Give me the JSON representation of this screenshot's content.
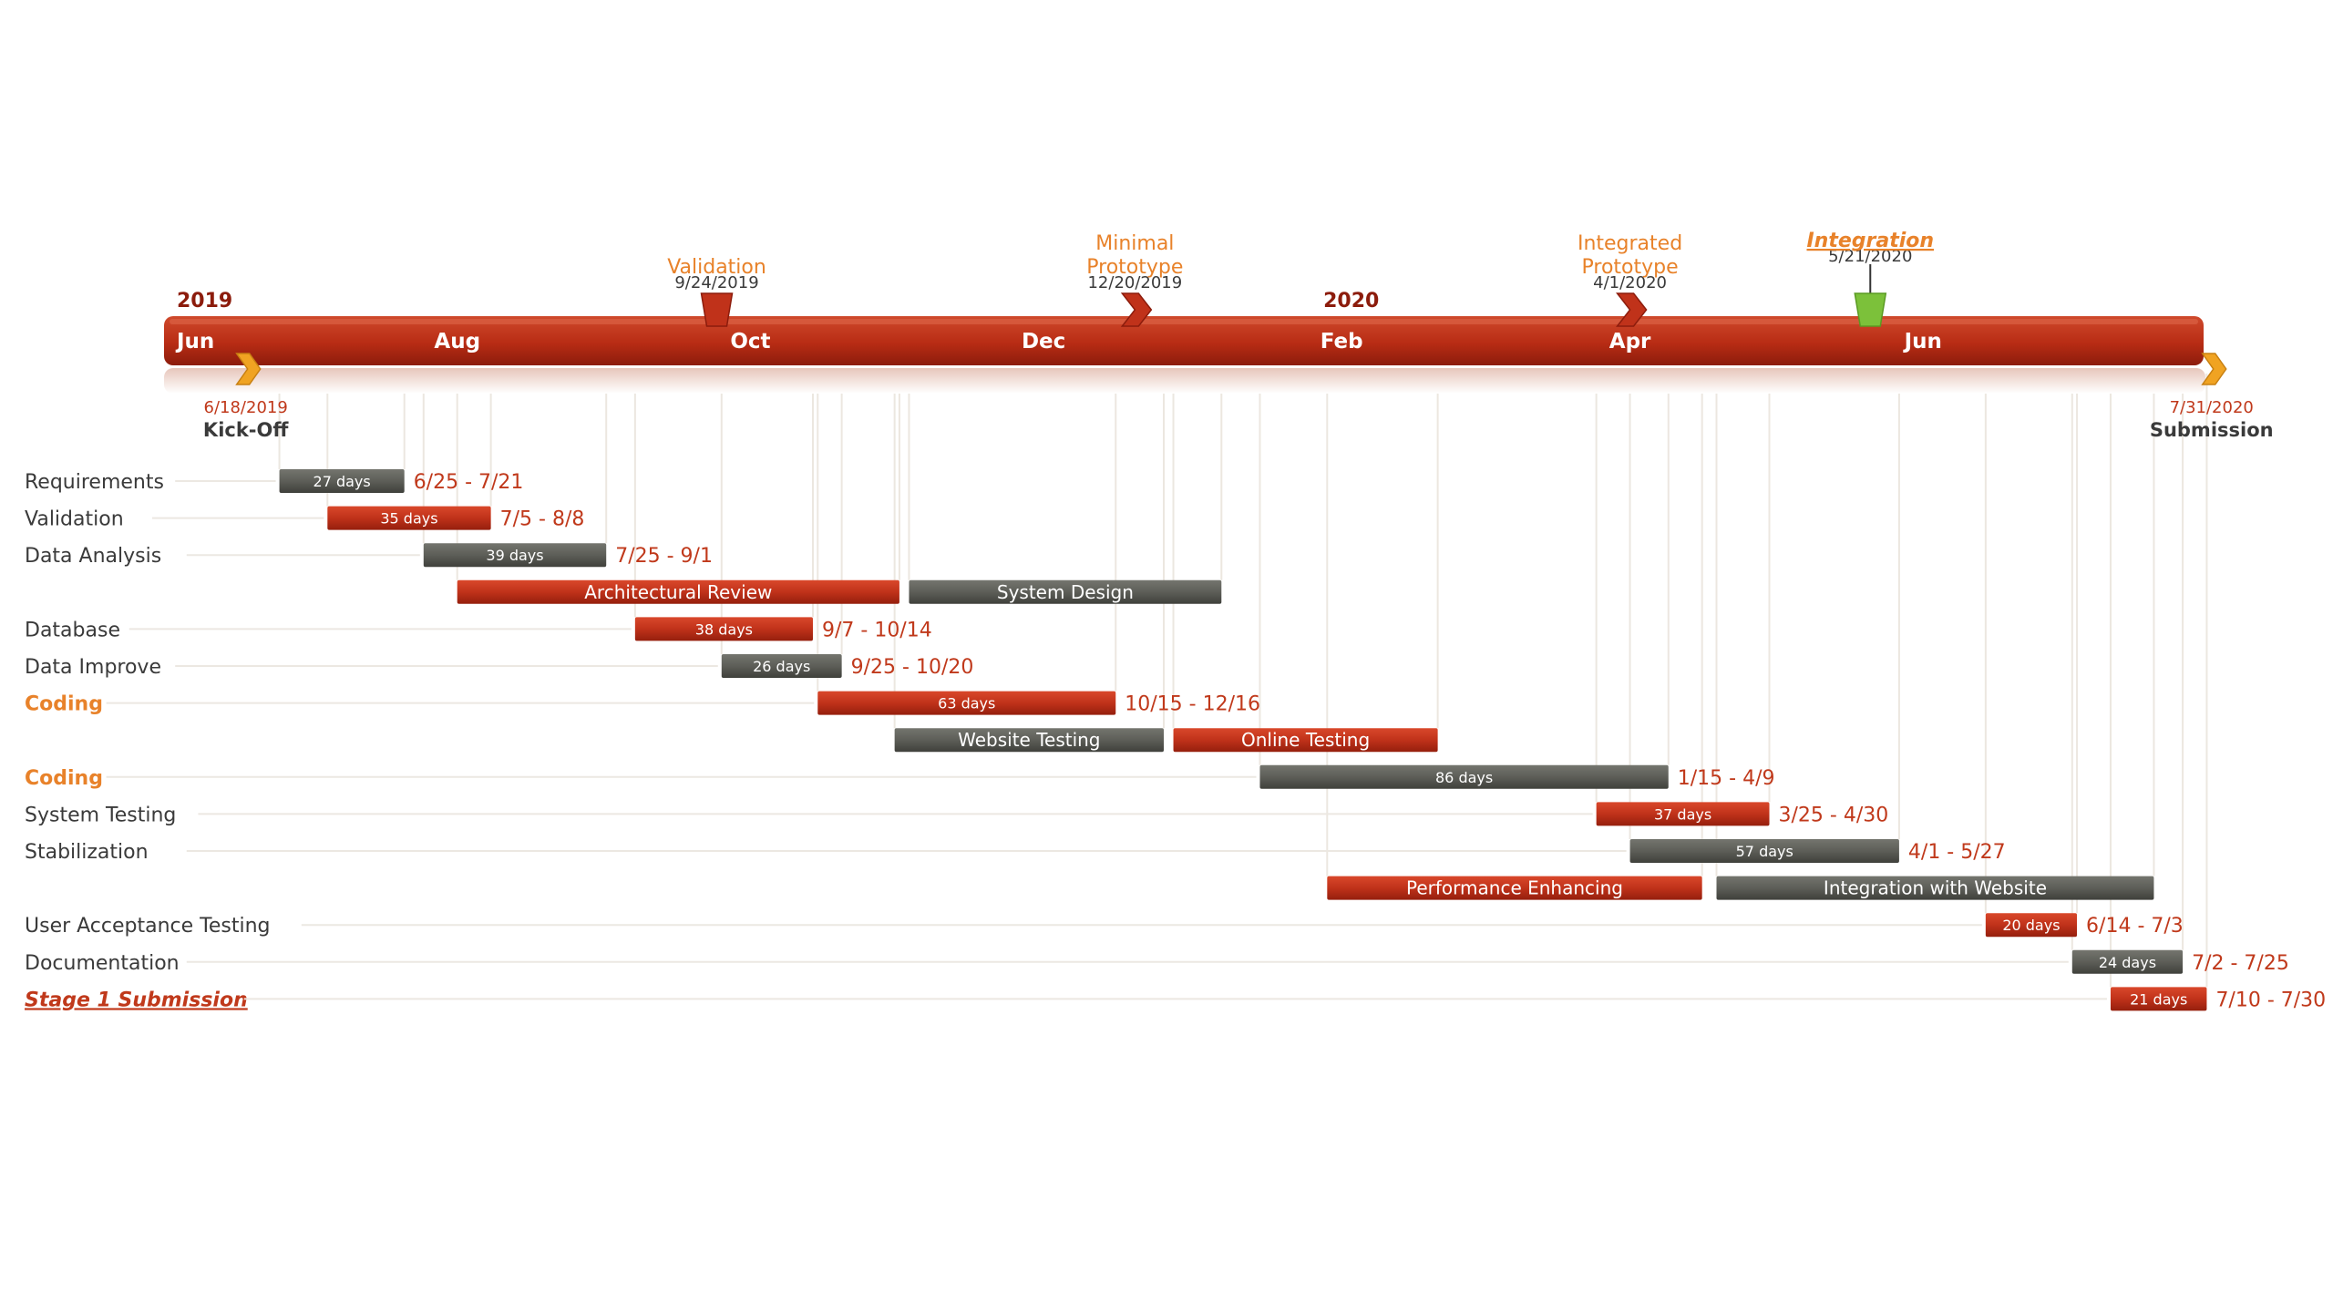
{
  "colors": {
    "red": "#c0321a",
    "red_dark": "#8c1c0c",
    "gray": "#5d5e58",
    "gray_dark": "#3c3d38",
    "orange": "#e8822a",
    "green": "#7cc13a",
    "arrow_gold": "#f0a322",
    "track": "#efe3dc",
    "text_dark": "#3a3a3a",
    "text_date": "#c0391b"
  },
  "chart_data": {
    "type": "gantt",
    "time_range": [
      "2019-06-01",
      "2020-08-01"
    ],
    "year_labels": [
      {
        "date": "2019-06-01",
        "label": "2019"
      },
      {
        "date": "2020-02-01",
        "label": "2020"
      }
    ],
    "month_labels": [
      {
        "date": "2019-06-01",
        "label": "Jun"
      },
      {
        "date": "2019-08-01",
        "label": "Aug"
      },
      {
        "date": "2019-10-01",
        "label": "Oct"
      },
      {
        "date": "2019-12-01",
        "label": "Dec"
      },
      {
        "date": "2020-02-01",
        "label": "Feb"
      },
      {
        "date": "2020-04-01",
        "label": "Apr"
      },
      {
        "date": "2020-06-01",
        "label": "Jun"
      }
    ],
    "milestones": [
      {
        "name": "Kick-Off",
        "date": "2019-06-18",
        "date_label": "6/18/2019",
        "shape": "arrow",
        "position": "below",
        "color": "gold"
      },
      {
        "name": "Validation",
        "date": "2019-09-24",
        "date_label": "9/24/2019",
        "shape": "trapezoid",
        "position": "above",
        "color": "red"
      },
      {
        "name": "Minimal Prototype",
        "date": "2019-12-20",
        "date_label": "12/20/2019",
        "shape": "chevron",
        "position": "above",
        "color": "red"
      },
      {
        "name": "Integrated Prototype",
        "date": "2020-04-01",
        "date_label": "4/1/2020",
        "shape": "chevron",
        "position": "above",
        "color": "red"
      },
      {
        "name": "Integration",
        "date": "2020-05-21",
        "date_label": "5/21/2020",
        "shape": "trapezoid",
        "position": "above",
        "color": "green",
        "emphasis": true
      },
      {
        "name": "Submission",
        "date": "2020-07-31",
        "date_label": "7/31/2020",
        "shape": "arrow",
        "position": "below",
        "color": "gold"
      }
    ],
    "rows": [
      {
        "label": "Requirements",
        "highlight": false,
        "tasks": [
          {
            "start": "2019-06-25",
            "end": "2019-07-21",
            "color": "gray",
            "text": "27 days",
            "range": "6/25 - 7/21"
          }
        ]
      },
      {
        "label": "Validation",
        "highlight": false,
        "tasks": [
          {
            "start": "2019-07-05",
            "end": "2019-08-08",
            "color": "red",
            "text": "35 days",
            "range": "7/5 - 8/8"
          }
        ]
      },
      {
        "label": "Data Analysis",
        "highlight": false,
        "tasks": [
          {
            "start": "2019-07-25",
            "end": "2019-09-01",
            "color": "gray",
            "text": "39 days",
            "range": "7/25 - 9/1"
          }
        ]
      },
      {
        "label": "",
        "highlight": false,
        "tasks": [
          {
            "start": "2019-08-01",
            "end": "2019-11-01",
            "color": "red",
            "text": "Architectural Review",
            "range": ""
          },
          {
            "start": "2019-11-03",
            "end": "2020-01-07",
            "color": "gray",
            "text": "System Design",
            "range": ""
          }
        ]
      },
      {
        "label": "Database",
        "highlight": false,
        "tasks": [
          {
            "start": "2019-09-07",
            "end": "2019-10-14",
            "color": "red",
            "text": "38 days",
            "range": "9/7 - 10/14"
          }
        ]
      },
      {
        "label": "Data Improve",
        "highlight": false,
        "tasks": [
          {
            "start": "2019-09-25",
            "end": "2019-10-20",
            "color": "gray",
            "text": "26 days",
            "range": "9/25 - 10/20"
          }
        ]
      },
      {
        "label": "Coding",
        "highlight": true,
        "tasks": [
          {
            "start": "2019-10-15",
            "end": "2019-12-16",
            "color": "red",
            "text": "63 days",
            "range": "10/15 - 12/16"
          }
        ]
      },
      {
        "label": "",
        "highlight": false,
        "tasks": [
          {
            "start": "2019-10-31",
            "end": "2019-12-26",
            "color": "gray",
            "text": "Website Testing",
            "range": ""
          },
          {
            "start": "2019-12-28",
            "end": "2020-02-21",
            "color": "red",
            "text": "Online Testing",
            "range": ""
          }
        ]
      },
      {
        "label": "Coding",
        "highlight": true,
        "tasks": [
          {
            "start": "2020-01-15",
            "end": "2020-04-09",
            "color": "gray",
            "text": "86 days",
            "range": "1/15 - 4/9"
          }
        ]
      },
      {
        "label": "System Testing",
        "highlight": false,
        "tasks": [
          {
            "start": "2020-03-25",
            "end": "2020-04-30",
            "color": "red",
            "text": "37 days",
            "range": "3/25 - 4/30"
          }
        ]
      },
      {
        "label": "Stabilization",
        "highlight": false,
        "tasks": [
          {
            "start": "2020-04-01",
            "end": "2020-05-27",
            "color": "gray",
            "text": "57 days",
            "range": "4/1 - 5/27"
          }
        ]
      },
      {
        "label": "",
        "highlight": false,
        "tasks": [
          {
            "start": "2020-01-29",
            "end": "2020-04-16",
            "color": "red",
            "text": "Performance Enhancing",
            "range": ""
          },
          {
            "start": "2020-04-19",
            "end": "2020-07-19",
            "color": "gray",
            "text": "Integration with Website",
            "range": ""
          }
        ]
      },
      {
        "label": "User Acceptance Testing",
        "highlight": false,
        "tasks": [
          {
            "start": "2020-06-14",
            "end": "2020-07-03",
            "color": "red",
            "text": "20 days",
            "range": "6/14 - 7/3"
          }
        ]
      },
      {
        "label": "Documentation",
        "highlight": false,
        "tasks": [
          {
            "start": "2020-07-02",
            "end": "2020-07-25",
            "color": "gray",
            "text": "24 days",
            "range": "7/2 - 7/25"
          }
        ]
      },
      {
        "label": "Stage 1 Submission",
        "highlight": false,
        "emphasis": true,
        "tasks": [
          {
            "start": "2020-07-10",
            "end": "2020-07-30",
            "color": "red",
            "text": "21 days",
            "range": "7/10 - 7/30"
          }
        ]
      }
    ]
  }
}
